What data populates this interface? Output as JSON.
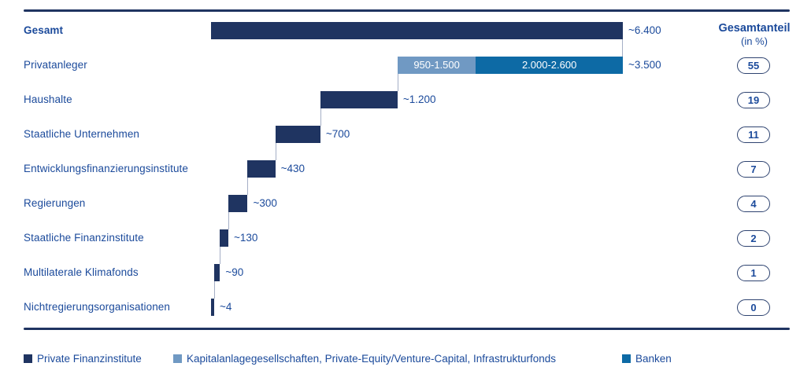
{
  "chart_data": {
    "type": "bar",
    "subtype": "horizontal-waterfall",
    "title": "",
    "share_header": {
      "title": "Gesamtanteil",
      "subtitle": "(in %)"
    },
    "rows": [
      {
        "label": "Gesamt",
        "bold": true,
        "value": 6400,
        "value_label": "~6.400",
        "share_pct": null
      },
      {
        "label": "Privatanleger",
        "bold": false,
        "value": 3500,
        "value_label": "~3.500",
        "share_pct": "55",
        "segments": [
          {
            "label": "950-1.500",
            "value": 1225,
            "color_key": "light"
          },
          {
            "label": "2.000-2.600",
            "value": 2300,
            "color_key": "mid"
          }
        ]
      },
      {
        "label": "Haushalte",
        "bold": false,
        "value": 1200,
        "value_label": "~1.200",
        "share_pct": "19"
      },
      {
        "label": "Staatliche Unternehmen",
        "bold": false,
        "value": 700,
        "value_label": "~700",
        "share_pct": "11"
      },
      {
        "label": "Entwicklungsfinanzierungsinstitute",
        "bold": false,
        "value": 430,
        "value_label": "~430",
        "share_pct": "7"
      },
      {
        "label": "Regierungen",
        "bold": false,
        "value": 300,
        "value_label": "~300",
        "share_pct": "4"
      },
      {
        "label": "Staatliche Finanzinstitute",
        "bold": false,
        "value": 130,
        "value_label": "~130",
        "share_pct": "2"
      },
      {
        "label": "Multilaterale Klimafonds",
        "bold": false,
        "value": 90,
        "value_label": "~90",
        "share_pct": "1"
      },
      {
        "label": "Nichtregierungsorganisationen",
        "bold": false,
        "value": 4,
        "value_label": "~4",
        "share_pct": "0"
      }
    ],
    "legend": [
      {
        "label": "Private Finanzinstitute",
        "color_key": "navy"
      },
      {
        "label": "Kapitalanlagegesellschaften, Private-Equity/Venture-Capital, Infrastrukturfonds",
        "color_key": "light"
      },
      {
        "label": "Banken",
        "color_key": "mid"
      }
    ],
    "colors": {
      "navy": "#1F3461",
      "light": "#7099C3",
      "mid": "#0D6AA5",
      "text": "#1B4A9B",
      "badge_border": "#2E4370",
      "connector": "#A5AFC6"
    },
    "xlim": [
      0,
      6400
    ],
    "grid": false,
    "legend_position": "bottom"
  }
}
